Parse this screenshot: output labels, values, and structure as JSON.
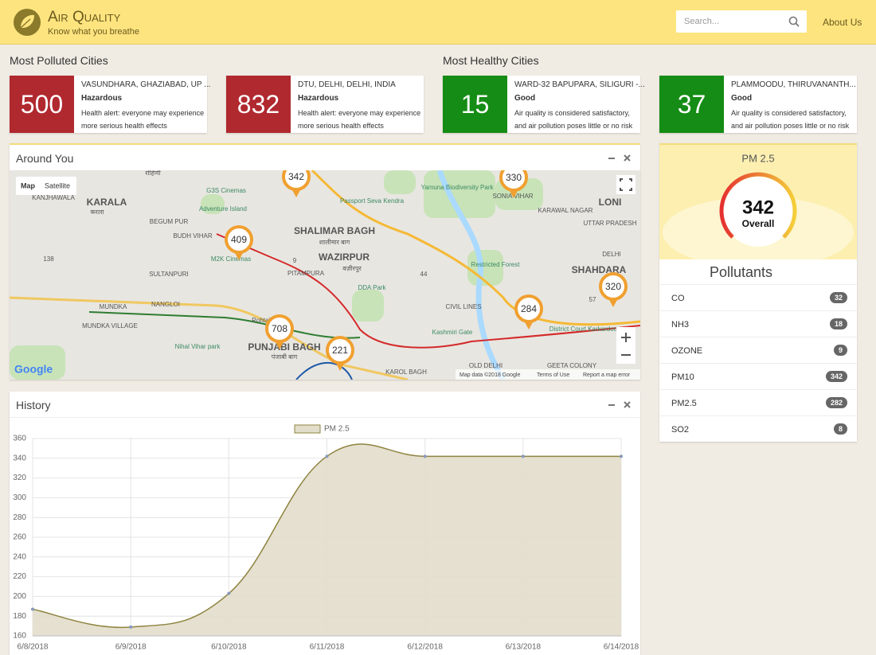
{
  "header": {
    "title": "Air Quality",
    "tagline": "Know what you breathe",
    "search_placeholder": "Search...",
    "nav": "About Us"
  },
  "sections": {
    "polluted": "Most Polluted Cities",
    "healthy": "Most Healthy Cities"
  },
  "cards": [
    {
      "aqi": 500,
      "city": "VASUNDHARA, GHAZIABAD, UP ...",
      "status": "Hazardous",
      "message": "Health alert: everyone may experience more serious health effects"
    },
    {
      "aqi": 832,
      "city": "DTU, DELHI, DELHI, INDIA",
      "status": "Hazardous",
      "message": "Health alert: everyone may experience more serious health effects"
    },
    {
      "aqi": 15,
      "city": "WARD-32 BAPUPARA, SILIGURI -...",
      "status": "Good",
      "message": "Air quality is considered satisfactory, and air pollution poses little or no risk"
    },
    {
      "aqi": 37,
      "city": "PLAMMOODU, THIRUVANANTH...",
      "status": "Good",
      "message": "Air quality is considered satisfactory, and air pollution poses little or no risk"
    }
  ],
  "map": {
    "title": "Around You",
    "map_types": [
      "Map",
      "Satellite"
    ],
    "markers": [
      342,
      330,
      409,
      284,
      320,
      708,
      221
    ],
    "labels": [
      "रोहिणी",
      "KARALA",
      "करला",
      "KANJHAWALA",
      "G3S Cinemas",
      "Adventure Island",
      "BEGUM PUR",
      "BUDH VIHAR",
      "M2K Cinemas",
      "SULTANPURI",
      "SHALIMAR BAGH",
      "शालीमार बाग",
      "Passport Seva Kendra",
      "WAZIRPUR",
      "वज़ीरपुर",
      "PITAMPURA",
      "DDA Park",
      "Yamuna Biodiversity Park",
      "Restricted Forest",
      "CIVIL LINES",
      "Kashmiri Gate",
      "SONIA VIHAR",
      "KARAWAL NAGAR",
      "LONI",
      "UTTAR PRADESH",
      "DELHI",
      "SHAHDARA",
      "District Court Karkardooma",
      "MUNDKA",
      "NANGLOI",
      "MUNDKA VILLAGE",
      "Rohtak Rd",
      "Nihal Vihar park",
      "PUNJABI BAGH",
      "पंजाबी बाग",
      "KAROL BAGH",
      "OLD DELHI",
      "GEETA COLONY",
      "9",
      "44",
      "57",
      "138"
    ],
    "logo": "Google",
    "attribution": "Map data ©2018 Google",
    "terms": "Terms of Use",
    "report": "Report a map error"
  },
  "gauge": {
    "title": "PM 2.5",
    "value": 342,
    "label": "Overall"
  },
  "pollutants": {
    "title": "Pollutants",
    "items": [
      {
        "name": "CO",
        "value": 32
      },
      {
        "name": "NH3",
        "value": 18
      },
      {
        "name": "OZONE",
        "value": 9
      },
      {
        "name": "PM10",
        "value": 342
      },
      {
        "name": "PM2.5",
        "value": 282
      },
      {
        "name": "SO2",
        "value": 8
      }
    ]
  },
  "history": {
    "title": "History"
  },
  "chart_data": {
    "type": "area",
    "categories": [
      "6/8/2018",
      "6/9/2018",
      "6/10/2018",
      "6/11/2018",
      "6/12/2018",
      "6/13/2018",
      "6/14/2018"
    ],
    "series": [
      {
        "name": "PM 2.5",
        "color": "#8f8440",
        "fill": "#e2ddcb",
        "values": [
          187,
          169,
          203,
          342,
          342,
          342,
          342
        ]
      }
    ],
    "ylim": [
      160,
      360
    ],
    "yticks": [
      160,
      180,
      200,
      220,
      240,
      260,
      280,
      300,
      320,
      340,
      360
    ],
    "grid": true,
    "legend": "top"
  }
}
